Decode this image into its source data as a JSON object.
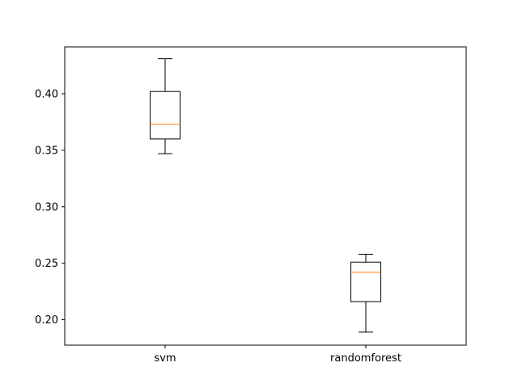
{
  "chart_data": {
    "type": "box",
    "categories": [
      "svm",
      "randomforest"
    ],
    "boxes": [
      {
        "category": "svm",
        "whisker_low": 0.347,
        "q1": 0.36,
        "median": 0.373,
        "q3": 0.402,
        "whisker_high": 0.431
      },
      {
        "category": "randomforest",
        "whisker_low": 0.189,
        "q1": 0.216,
        "median": 0.242,
        "q3": 0.251,
        "whisker_high": 0.258
      }
    ],
    "yticks": [
      0.2,
      0.25,
      0.3,
      0.35,
      0.4
    ],
    "ytick_labels": [
      "0.20",
      "0.25",
      "0.30",
      "0.35",
      "0.40"
    ],
    "ylim": [
      0.1775,
      0.4415
    ],
    "title": "",
    "xlabel": "",
    "ylabel": "",
    "grid": false,
    "colors": {
      "box": "#000000",
      "median": "#ff7f0e",
      "axes": "#000000"
    }
  }
}
